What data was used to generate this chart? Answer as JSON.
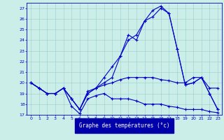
{
  "title": "Graphe des températures (°c)",
  "bg_color": "#cceee8",
  "plot_bg_color": "#cceee8",
  "line_color": "#0000cc",
  "xlabel_bg": "#0000aa",
  "xlabel_fg": "#ffffff",
  "grid_color": "#99cccc",
  "xlim": [
    -0.5,
    23.5
  ],
  "ylim": [
    17,
    27.5
  ],
  "xticks": [
    0,
    1,
    2,
    3,
    4,
    5,
    6,
    7,
    8,
    9,
    10,
    11,
    12,
    13,
    14,
    15,
    16,
    17,
    18,
    19,
    20,
    21,
    22,
    23
  ],
  "yticks": [
    17,
    18,
    19,
    20,
    21,
    22,
    23,
    24,
    25,
    26,
    27
  ],
  "series1_x": [
    0,
    1,
    2,
    3,
    4,
    5,
    6,
    7,
    8,
    9,
    10,
    11,
    12,
    13,
    14,
    15,
    16,
    17,
    18,
    19,
    20,
    21,
    22,
    23
  ],
  "series1_y": [
    20.0,
    19.5,
    19.0,
    19.0,
    19.5,
    17.8,
    17.1,
    18.5,
    18.8,
    19.0,
    18.5,
    18.5,
    18.5,
    18.3,
    18.0,
    18.0,
    18.0,
    17.8,
    17.7,
    17.5,
    17.5,
    17.5,
    17.3,
    17.2
  ],
  "series2_x": [
    0,
    1,
    2,
    3,
    4,
    5,
    6,
    7,
    8,
    9,
    10,
    11,
    12,
    13,
    14,
    15,
    16,
    17,
    18,
    19,
    20,
    21,
    22,
    23
  ],
  "series2_y": [
    20.0,
    19.5,
    19.0,
    19.0,
    19.5,
    18.5,
    17.5,
    19.2,
    19.5,
    19.8,
    20.0,
    20.3,
    20.5,
    20.5,
    20.5,
    20.5,
    20.3,
    20.2,
    20.0,
    20.0,
    20.5,
    20.5,
    19.5,
    19.5
  ],
  "series3_x": [
    0,
    1,
    2,
    3,
    4,
    5,
    6,
    7,
    8,
    9,
    10,
    11,
    12,
    13,
    14,
    15,
    16,
    17,
    18,
    19,
    20,
    21,
    22,
    23
  ],
  "series3_y": [
    20.0,
    19.5,
    19.0,
    19.0,
    19.5,
    18.5,
    17.5,
    19.0,
    19.5,
    20.5,
    21.5,
    22.5,
    24.5,
    24.0,
    25.8,
    26.2,
    27.0,
    26.5,
    23.2,
    19.8,
    20.0,
    20.5,
    19.0,
    17.5
  ],
  "series4_x": [
    0,
    1,
    2,
    3,
    4,
    5,
    6,
    7,
    8,
    9,
    10,
    11,
    12,
    13,
    14,
    15,
    16,
    17,
    18,
    19,
    20,
    21,
    22,
    23
  ],
  "series4_y": [
    20.0,
    19.5,
    19.0,
    19.0,
    19.5,
    18.5,
    17.5,
    19.0,
    19.5,
    20.0,
    20.5,
    22.5,
    24.0,
    24.5,
    25.8,
    26.8,
    27.2,
    26.5,
    23.2,
    19.8,
    20.0,
    20.5,
    19.0,
    17.5
  ]
}
